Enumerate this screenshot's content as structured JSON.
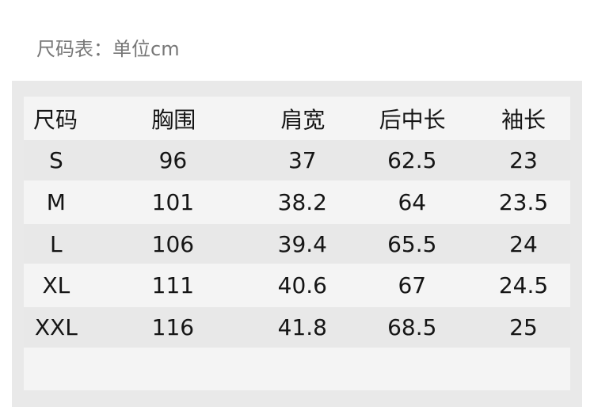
{
  "title": "尺码表：单位cm",
  "headers": [
    "尺码",
    "胸围",
    "肩宽",
    "后中长",
    "袖长"
  ],
  "rows": [
    [
      "S",
      "96",
      "37",
      "62.5",
      "23"
    ],
    [
      "M",
      "101",
      "38.2",
      "64",
      "23.5"
    ],
    [
      "L",
      "106",
      "39.4",
      "65.5",
      "24"
    ],
    [
      "XL",
      "111",
      "40.6",
      "67",
      "24.5"
    ],
    [
      "XXL",
      "116",
      "41.8",
      "68.5",
      "25"
    ]
  ],
  "colors": {
    "row_light": "#f4f4f4",
    "row_dark": "#e8e8e8",
    "panel": "#e9e9e9",
    "text": "#151515"
  }
}
